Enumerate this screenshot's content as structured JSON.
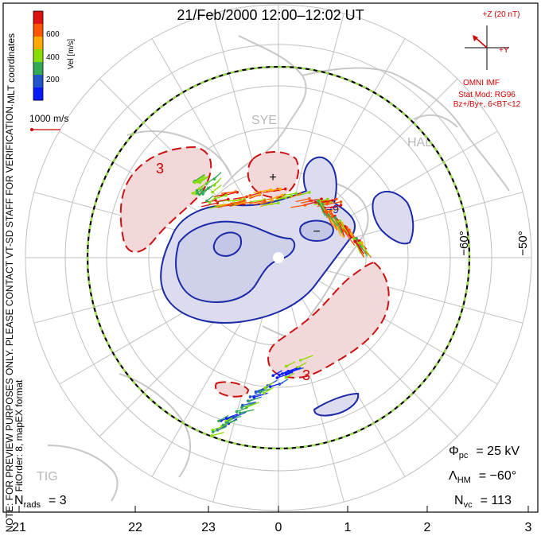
{
  "title": "21/Feb/2000 12:00–12:02 UT",
  "coordinate_system": "MLT coordinates",
  "velocity_scale": {
    "label": "Vel [m/s]",
    "ticks": [
      "600",
      "400",
      "200"
    ],
    "colors": [
      "#dd1111",
      "#ff5500",
      "#ffaa00",
      "#88dd00",
      "#33aa55",
      "#2255cc",
      "#0a1aff"
    ]
  },
  "reference_vector_label": "1000 m/s",
  "notice": "NOTE: FOR PREVIEW PURPOSES ONLY. PLEASE CONTACT VT-SD STAFF FOR VERIFICATION.",
  "fit_info": "FitOrder: 8, mapEX format",
  "imf": {
    "bz_label": "+Z (20 nT)",
    "by_label": "+Y",
    "source": "OMNI IMF",
    "stat_mod": "Stat Mod: RG96",
    "stat_condition": "Bz+/By+, 6<BT<12"
  },
  "stations": [
    "SYE",
    "HAL",
    "TIG"
  ],
  "latitude_labels": [
    "−60°",
    "−50°"
  ],
  "mlt_ticks": [
    "21",
    "22",
    "23",
    "0",
    "1",
    "2",
    "3"
  ],
  "stats": {
    "phi_pc_symbol": "Φ",
    "phi_pc_sub": "pc",
    "phi_pc_value": "= 25 kV",
    "lambda_hm_symbol": "Λ",
    "lambda_hm_sub": "HM",
    "lambda_hm_value": "= −60°",
    "n_vc_symbol": "N",
    "n_vc_sub": "vc",
    "n_vc_value": "= 113",
    "n_rads_symbol": "N",
    "n_rads_sub": "rads",
    "n_rads_value": "= 3"
  },
  "contours": {
    "positive_cell_label": "3",
    "negative_cell_label": "−9",
    "plus_marker": "+",
    "minus_marker": "−",
    "positive_fill": "#f2d8d8",
    "negative_fill": "#dcdcee",
    "positive_line": "#cc1111",
    "negative_line": "#1a2aa8"
  }
}
